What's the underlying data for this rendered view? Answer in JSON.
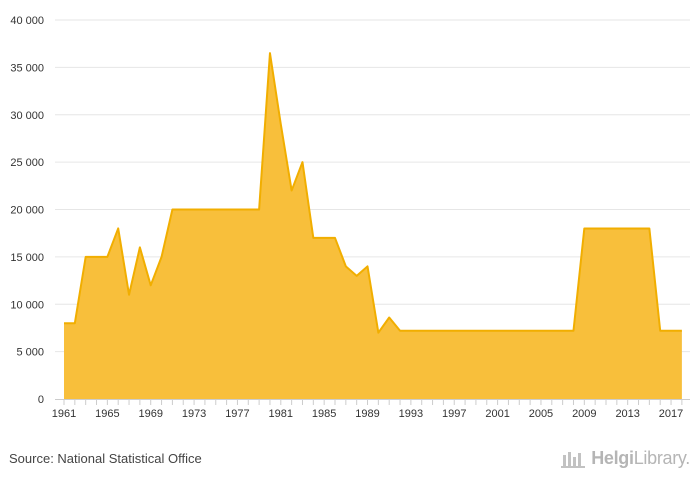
{
  "chart_data": {
    "type": "area",
    "x": [
      1961,
      1962,
      1963,
      1964,
      1965,
      1966,
      1967,
      1968,
      1969,
      1970,
      1971,
      1972,
      1973,
      1974,
      1975,
      1976,
      1977,
      1978,
      1979,
      1980,
      1981,
      1982,
      1983,
      1984,
      1985,
      1986,
      1987,
      1988,
      1989,
      1990,
      1991,
      1992,
      1993,
      1994,
      1995,
      1996,
      1997,
      1998,
      1999,
      2000,
      2001,
      2002,
      2003,
      2004,
      2005,
      2006,
      2007,
      2008,
      2009,
      2010,
      2011,
      2012,
      2013,
      2014,
      2015,
      2016,
      2017,
      2018
    ],
    "values": [
      8000,
      8000,
      15000,
      15000,
      15000,
      18000,
      11000,
      16000,
      12000,
      15000,
      20000,
      20000,
      20000,
      20000,
      20000,
      20000,
      20000,
      20000,
      20000,
      36500,
      29000,
      22000,
      25000,
      17000,
      17000,
      17000,
      14000,
      13000,
      14000,
      7000,
      8600,
      7200,
      7200,
      7200,
      7200,
      7200,
      7200,
      7200,
      7200,
      7200,
      7200,
      7200,
      7200,
      7200,
      7200,
      7200,
      7200,
      7200,
      18000,
      18000,
      18000,
      18000,
      18000,
      18000,
      18000,
      7200,
      7200,
      7200
    ],
    "xticks": [
      "1961",
      "1965",
      "1969",
      "1973",
      "1977",
      "1981",
      "1985",
      "1989",
      "1993",
      "1997",
      "2001",
      "2005",
      "2009",
      "2013",
      "2017"
    ],
    "yticks": [
      "0",
      "5 000",
      "10 000",
      "15 000",
      "20 000",
      "25 000",
      "30 000",
      "35 000",
      "40 000"
    ],
    "ylim": [
      0,
      40000
    ],
    "grid": true,
    "fill_color": "#f8bf3b",
    "line_color": "#f1ae00"
  },
  "footer": {
    "source": "Source: National Statistical Office",
    "logo_bold": "Helgi",
    "logo_rest": "Library",
    "logo_dot": "."
  }
}
